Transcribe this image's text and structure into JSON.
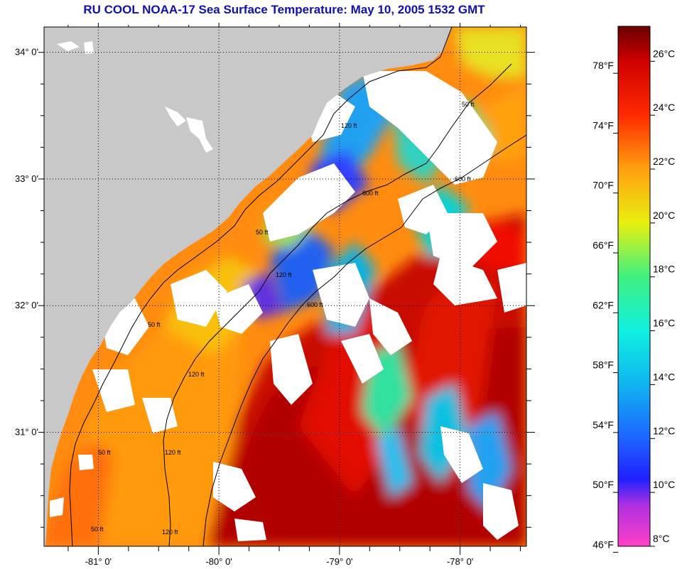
{
  "title": "RU COOL  NOAA-17  Sea Surface Temperature:  May 10, 2005 1532 GMT",
  "map": {
    "lat_range": [
      30.1,
      34.2
    ],
    "lon_range": [
      -81.45,
      -77.45
    ],
    "lat_ticks": [
      {
        "value": 34,
        "label": "34° 0'"
      },
      {
        "value": 33,
        "label": "33° 0'"
      },
      {
        "value": 32,
        "label": "32° 0'"
      },
      {
        "value": 31,
        "label": "31° 0'"
      }
    ],
    "lon_ticks": [
      {
        "value": -81,
        "label": "-81° 0'"
      },
      {
        "value": -80,
        "label": "-80° 0'"
      },
      {
        "value": -79,
        "label": "-79° 0'"
      },
      {
        "value": -78,
        "label": "-78° 0'"
      }
    ],
    "contour_labels": [
      "50 ft",
      "120 ft",
      "50 ft",
      "120 ft",
      "50 ft",
      "120 ft",
      "50 ft",
      "120 ft",
      "600 ft",
      "600 ft",
      "600 ft",
      "50 ft",
      "120 ft"
    ],
    "colors": {
      "land": "#c8c8c8",
      "cloud": "#ffffff",
      "frame": "#000000"
    }
  },
  "colorbar": {
    "celsius_range": [
      8,
      27.3
    ],
    "celsius_ticks": [
      {
        "value": 26,
        "label": "26°C"
      },
      {
        "value": 24,
        "label": "24°C"
      },
      {
        "value": 22,
        "label": "22°C"
      },
      {
        "value": 20,
        "label": "20°C"
      },
      {
        "value": 18,
        "label": "18°C"
      },
      {
        "value": 16,
        "label": "16°C"
      },
      {
        "value": 14,
        "label": "14°C"
      },
      {
        "value": 12,
        "label": "12°C"
      },
      {
        "value": 10,
        "label": "10°C"
      },
      {
        "value": 8,
        "label": "8°C"
      }
    ],
    "fahrenheit_ticks": [
      {
        "value": 78,
        "label": "78°F"
      },
      {
        "value": 74,
        "label": "74°F"
      },
      {
        "value": 70,
        "label": "70°F"
      },
      {
        "value": 66,
        "label": "66°F"
      },
      {
        "value": 62,
        "label": "62°F"
      },
      {
        "value": 58,
        "label": "58°F"
      },
      {
        "value": 54,
        "label": "54°F"
      },
      {
        "value": 50,
        "label": "50°F"
      },
      {
        "value": 46,
        "label": "46°F"
      }
    ],
    "gradient_stops": [
      {
        "c": 8,
        "color": "#ff40c8"
      },
      {
        "c": 9.5,
        "color": "#b030e0"
      },
      {
        "c": 10.5,
        "color": "#2020ff"
      },
      {
        "c": 12,
        "color": "#1e64ff"
      },
      {
        "c": 14,
        "color": "#10b4f0"
      },
      {
        "c": 16,
        "color": "#10f0e0"
      },
      {
        "c": 18,
        "color": "#40f080"
      },
      {
        "c": 20,
        "color": "#e8f010"
      },
      {
        "c": 22,
        "color": "#ffa010"
      },
      {
        "c": 24,
        "color": "#ff2a00"
      },
      {
        "c": 26,
        "color": "#d00000"
      },
      {
        "c": 27.3,
        "color": "#6a0000"
      }
    ]
  }
}
